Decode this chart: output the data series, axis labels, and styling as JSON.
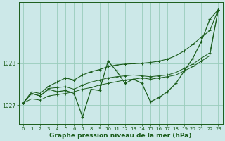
{
  "xlabel": "Graphe pression niveau de la mer (hPa)",
  "bg_color": "#cce8e8",
  "grid_color": "#99ccbb",
  "line_color": "#1a5c1a",
  "ylim": [
    1026.55,
    1029.45
  ],
  "yticks": [
    1027,
    1028
  ],
  "ytick_labels": [
    "1027",
    "1028"
  ],
  "xlim": [
    -0.5,
    23.5
  ],
  "x_ticks": [
    0,
    1,
    2,
    3,
    4,
    5,
    6,
    7,
    8,
    9,
    10,
    11,
    12,
    13,
    14,
    15,
    16,
    17,
    18,
    19,
    20,
    21,
    22,
    23
  ],
  "series_main": [
    1027.05,
    1027.28,
    1027.22,
    1027.38,
    1027.32,
    1027.35,
    1027.28,
    1026.72,
    1027.38,
    1027.35,
    1028.05,
    1027.82,
    1027.52,
    1027.62,
    1027.52,
    1027.08,
    1027.18,
    1027.32,
    1027.52,
    1027.82,
    1028.12,
    1028.52,
    1029.05,
    1029.28
  ],
  "series_upper_triangle": [
    1027.05,
    1027.32,
    1027.28,
    1027.45,
    1027.55,
    1027.65,
    1027.6,
    1027.72,
    1027.8,
    1027.85,
    1027.92,
    1027.96,
    1027.98,
    1027.99,
    1028.0,
    1028.02,
    1028.05,
    1028.1,
    1028.18,
    1028.3,
    1028.45,
    1028.62,
    1028.78,
    1029.28
  ],
  "series_lower_band1": [
    1027.05,
    1027.28,
    1027.22,
    1027.4,
    1027.42,
    1027.44,
    1027.38,
    1027.48,
    1027.55,
    1027.6,
    1027.65,
    1027.68,
    1027.7,
    1027.72,
    1027.7,
    1027.68,
    1027.7,
    1027.72,
    1027.78,
    1027.88,
    1027.98,
    1028.12,
    1028.25,
    1029.28
  ],
  "series_lower_band2": [
    1027.05,
    1027.15,
    1027.12,
    1027.22,
    1027.25,
    1027.28,
    1027.32,
    1027.38,
    1027.42,
    1027.48,
    1027.52,
    1027.56,
    1027.6,
    1027.62,
    1027.65,
    1027.62,
    1027.65,
    1027.68,
    1027.72,
    1027.82,
    1027.92,
    1028.05,
    1028.18,
    1029.28
  ],
  "xlabel_fontsize": 6.5,
  "tick_fontsize": 5.5
}
